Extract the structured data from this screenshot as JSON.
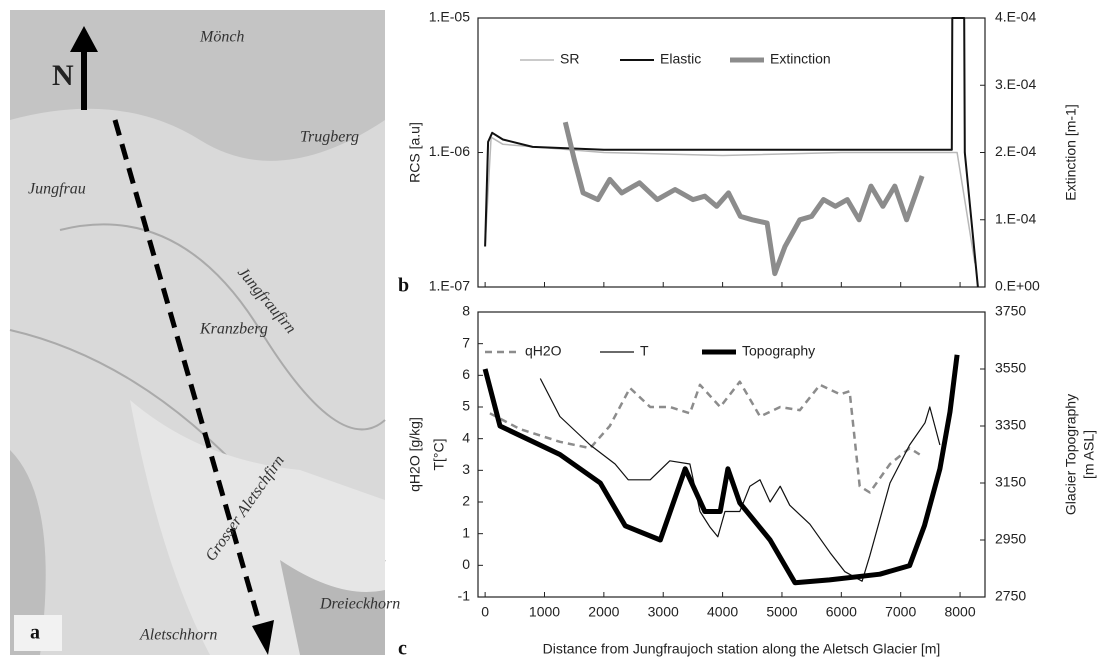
{
  "map": {
    "panel_label": "a",
    "north": "N",
    "labels": [
      "Mönch",
      "Jungfrau",
      "Trugberg",
      "Kranzberg",
      "Jungfraufirn",
      "Grosser Aletschfirn",
      "Aletschhorn",
      "Dreieckhorn"
    ]
  },
  "chart_data": [
    {
      "type": "line",
      "panel_label": "b",
      "ylabel": "RCS [a.u]",
      "y2label": "Extinction [m-1]",
      "yscale": "log",
      "xlim": [
        -120,
        8420
      ],
      "xticks": [
        0,
        1000,
        2000,
        3000,
        4000,
        5000,
        6000,
        7000,
        8000
      ],
      "ylim": [
        1e-07,
        1e-05
      ],
      "yticks": [
        {
          "value": 1e-07,
          "label": "1.E-07"
        },
        {
          "value": 1e-06,
          "label": "1.E-06"
        },
        {
          "value": 1e-05,
          "label": "1.E-05"
        }
      ],
      "y2lim": [
        0,
        0.0004
      ],
      "y2ticks": [
        {
          "value": 0,
          "label": "0.E+00"
        },
        {
          "value": 0.0001,
          "label": "1.E-04"
        },
        {
          "value": 0.0002,
          "label": "2.E-04"
        },
        {
          "value": 0.0003,
          "label": "3.E-04"
        },
        {
          "value": 0.0004,
          "label": "4.E-04"
        }
      ],
      "series": [
        {
          "name": "SR",
          "color": "#b8b8b8",
          "x": [
            0,
            100,
            300,
            2000,
            4000,
            6000,
            7800,
            7950,
            8250
          ],
          "values": [
            2e-07,
            1.3e-06,
            1.15e-06,
            1e-06,
            9.5e-07,
            1e-06,
            1e-06,
            1e-06,
            1.5e-07
          ]
        },
        {
          "name": "Elastic",
          "color": "#111111",
          "x": [
            0,
            50,
            120,
            300,
            800,
            2000,
            4000,
            6000,
            7830,
            7860,
            7870,
            8070,
            8080,
            8300
          ],
          "values": [
            2e-07,
            1.2e-06,
            1.4e-06,
            1.25e-06,
            1.1e-06,
            1.05e-06,
            1.05e-06,
            1.05e-06,
            1.05e-06,
            1.05e-06,
            1e-05,
            1e-05,
            1e-06,
            1e-07
          ]
        },
        {
          "name": "Extinction",
          "color": "#8c8c8c",
          "axis": "y2",
          "x": [
            1350,
            1500,
            1650,
            1900,
            2100,
            2300,
            2600,
            2900,
            3200,
            3500,
            3700,
            3900,
            4100,
            4300,
            4500,
            4750,
            4880,
            5050,
            5300,
            5500,
            5700,
            5900,
            6100,
            6300,
            6500,
            6700,
            6900,
            7100,
            7360
          ],
          "values": [
            0.000245,
            0.00019,
            0.00014,
            0.00013,
            0.00016,
            0.00014,
            0.000155,
            0.00013,
            0.000145,
            0.00013,
            0.000135,
            0.00012,
            0.00014,
            0.000105,
            0.0001,
            9.5e-05,
            2e-05,
            6e-05,
            0.0001,
            0.000105,
            0.00013,
            0.00012,
            0.00013,
            0.0001,
            0.00015,
            0.00012,
            0.00015,
            0.0001,
            0.000165
          ]
        }
      ]
    },
    {
      "type": "line",
      "panel_label": "c",
      "xlabel": "Distance from Jungfraujoch station along the Aletsch Glacier  [m]",
      "ylabel": [
        "qH2O [g/kg]",
        "T[°C]"
      ],
      "y2label": [
        "Glacier Topography",
        "[m ASL]"
      ],
      "xlim": [
        -120,
        8420
      ],
      "xticks": [
        0,
        1000,
        2000,
        3000,
        4000,
        5000,
        6000,
        7000,
        8000
      ],
      "ylim": [
        -1,
        8
      ],
      "yticks": [
        -1,
        0,
        1,
        2,
        3,
        4,
        5,
        6,
        7,
        8
      ],
      "y2lim": [
        2750,
        3750
      ],
      "y2ticks": [
        2750,
        2950,
        3150,
        3350,
        3550,
        3750
      ],
      "series": [
        {
          "name": "qH2O",
          "color": "#8c8c8c",
          "dash": true,
          "x": [
            80,
            590,
            1260,
            1770,
            2100,
            2440,
            2780,
            3110,
            3450,
            3620,
            3960,
            4290,
            4630,
            4970,
            5300,
            5640,
            5980,
            6140,
            6310,
            6480,
            6820,
            7150,
            7320
          ],
          "values": [
            4.8,
            4.3,
            3.9,
            3.7,
            4.4,
            5.6,
            5.0,
            5.0,
            4.8,
            5.7,
            5.0,
            5.8,
            4.7,
            5.0,
            4.9,
            5.7,
            5.4,
            5.5,
            2.5,
            2.3,
            3.2,
            3.7,
            3.5
          ]
        },
        {
          "name": "T",
          "color": "#111111",
          "x": [
            930,
            1260,
            1770,
            2190,
            2410,
            2780,
            3110,
            3450,
            3620,
            3790,
            3920,
            4040,
            4290,
            4460,
            4630,
            4800,
            4970,
            5130,
            5470,
            5810,
            6060,
            6350,
            6480,
            6820,
            7150,
            7410,
            7490,
            7660
          ],
          "values": [
            5.9,
            4.7,
            3.8,
            3.2,
            2.7,
            2.7,
            3.3,
            3.2,
            1.7,
            1.2,
            0.9,
            1.7,
            1.7,
            2.5,
            2.7,
            2.0,
            2.5,
            1.9,
            1.3,
            0.4,
            -0.2,
            -0.5,
            0.3,
            2.6,
            3.8,
            4.5,
            5.0,
            3.8
          ]
        },
        {
          "name": "Topography",
          "color": "#000000",
          "axis": "y2",
          "x": [
            0,
            250,
            1260,
            1940,
            2360,
            2950,
            3370,
            3700,
            3960,
            4090,
            4290,
            4800,
            5220,
            5800,
            6650,
            7150,
            7400,
            7660,
            7830,
            7950
          ],
          "values": [
            3550,
            3350,
            3250,
            3150,
            3000,
            2950,
            3200,
            3050,
            3050,
            3200,
            3080,
            2950,
            2800,
            2810,
            2830,
            2860,
            3000,
            3200,
            3400,
            3600
          ]
        }
      ]
    }
  ]
}
